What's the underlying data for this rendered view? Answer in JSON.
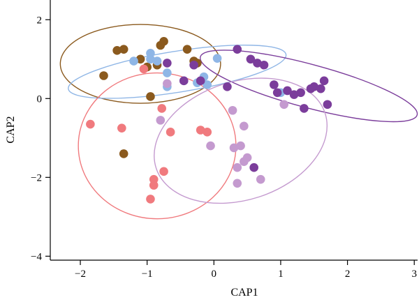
{
  "chart_data": {
    "type": "scatter",
    "xlabel": "CAP1",
    "ylabel": "CAP2",
    "xlim": [
      -2.45,
      3.05
    ],
    "ylim": [
      -4.1,
      2.5
    ],
    "xticks": [
      -2,
      -1,
      0,
      1,
      2,
      3
    ],
    "yticks": [
      -4,
      -2,
      0,
      2
    ],
    "xtick_labels": [
      "−2",
      "−1",
      "0",
      "1",
      "2",
      "3"
    ],
    "ytick_labels": [
      "−4",
      "−2",
      "0",
      "2"
    ],
    "grid": false,
    "series": [
      {
        "color": "#8B5A1E",
        "points": [
          [
            -1.65,
            0.58
          ],
          [
            -1.45,
            1.22
          ],
          [
            -1.35,
            1.25
          ],
          [
            -1.1,
            1.0
          ],
          [
            -1.0,
            0.8
          ],
          [
            -0.85,
            0.85
          ],
          [
            -0.8,
            1.35
          ],
          [
            -0.75,
            1.45
          ],
          [
            -0.4,
            1.25
          ],
          [
            -0.3,
            0.95
          ],
          [
            -0.25,
            0.9
          ],
          [
            -0.95,
            0.05
          ],
          [
            -1.35,
            -1.4
          ]
        ],
        "ellipse": {
          "cx": -1.1,
          "cy": 0.88,
          "rx": 1.2,
          "ry": 1.0,
          "angle": 0
        }
      },
      {
        "color": "#8FB6E6",
        "points": [
          [
            -1.2,
            0.95
          ],
          [
            -0.95,
            1.15
          ],
          [
            -0.95,
            1.0
          ],
          [
            -0.85,
            0.95
          ],
          [
            -0.7,
            0.65
          ],
          [
            -0.7,
            0.3
          ],
          [
            -0.45,
            0.45
          ],
          [
            -0.25,
            0.4
          ],
          [
            -0.15,
            0.55
          ],
          [
            -0.1,
            0.35
          ],
          [
            0.05,
            1.02
          ],
          [
            1.0,
            0.15
          ]
        ],
        "ellipse": {
          "cx": -0.55,
          "cy": 0.68,
          "rx": 1.65,
          "ry": 0.52,
          "angle": -9
        }
      },
      {
        "color": "#7B3D9B",
        "points": [
          [
            -0.7,
            0.9
          ],
          [
            -0.45,
            0.45
          ],
          [
            -0.3,
            0.85
          ],
          [
            -0.2,
            0.45
          ],
          [
            0.2,
            0.3
          ],
          [
            0.35,
            1.25
          ],
          [
            0.55,
            1.0
          ],
          [
            0.65,
            0.9
          ],
          [
            0.75,
            0.85
          ],
          [
            0.9,
            0.35
          ],
          [
            0.95,
            0.15
          ],
          [
            1.1,
            0.2
          ],
          [
            1.2,
            0.1
          ],
          [
            1.3,
            0.15
          ],
          [
            1.35,
            -0.25
          ],
          [
            1.45,
            0.25
          ],
          [
            1.5,
            0.3
          ],
          [
            1.6,
            0.25
          ],
          [
            1.65,
            0.45
          ],
          [
            1.7,
            -0.15
          ],
          [
            0.6,
            -1.75
          ]
        ],
        "ellipse": {
          "cx": 1.42,
          "cy": 0.32,
          "rx": 1.68,
          "ry": 0.55,
          "angle": 15
        }
      },
      {
        "color": "#F07A7E",
        "points": [
          [
            -1.85,
            -0.65
          ],
          [
            -1.38,
            -0.75
          ],
          [
            -1.05,
            0.75
          ],
          [
            -0.78,
            -0.25
          ],
          [
            -0.75,
            -1.85
          ],
          [
            -0.9,
            -2.05
          ],
          [
            -0.9,
            -2.2
          ],
          [
            -0.95,
            -2.55
          ],
          [
            -0.2,
            -0.8
          ],
          [
            -0.1,
            -0.85
          ],
          [
            -0.65,
            -0.85
          ]
        ],
        "ellipse": {
          "cx": -0.85,
          "cy": -1.2,
          "rx": 1.18,
          "ry": 1.85,
          "angle": 0
        }
      },
      {
        "color": "#C49ACF",
        "points": [
          [
            -0.8,
            -0.55
          ],
          [
            -0.7,
            0.38
          ],
          [
            -0.05,
            -1.2
          ],
          [
            0.28,
            -0.3
          ],
          [
            0.3,
            -1.25
          ],
          [
            0.4,
            -1.2
          ],
          [
            0.45,
            -1.6
          ],
          [
            0.45,
            -0.7
          ],
          [
            0.5,
            -1.5
          ],
          [
            0.7,
            -2.05
          ],
          [
            0.35,
            -2.15
          ],
          [
            1.05,
            -0.15
          ],
          [
            0.35,
            -1.75
          ]
        ],
        "ellipse": {
          "cx": 0.4,
          "cy": -1.07,
          "rx": 1.33,
          "ry": 1.5,
          "angle": -18
        }
      }
    ]
  }
}
